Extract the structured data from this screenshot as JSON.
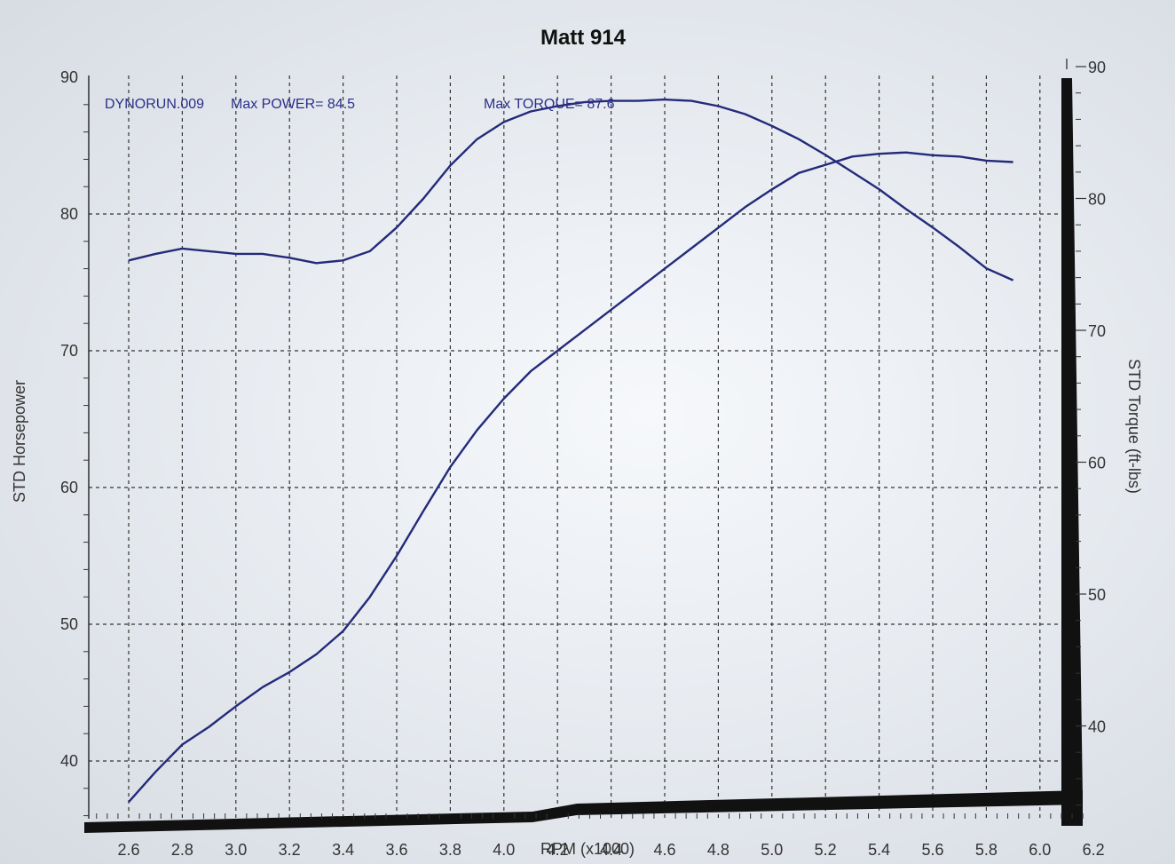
{
  "chart_data": {
    "type": "line",
    "title": "Matt 914",
    "xlabel": "RPM (x1000)",
    "ylabel": "STD Horsepower",
    "y2label": "STD Torque (ft-lbs)",
    "xlim": [
      2.5,
      6.2
    ],
    "ylim": [
      35,
      90
    ],
    "y2lim": [
      32,
      90
    ],
    "x_ticks": [
      "2.6",
      "2.8",
      "3.0",
      "3.2",
      "3.4",
      "3.6",
      "3.8",
      "4.0",
      "4.2",
      "4.4",
      "4.6",
      "4.8",
      "5.0",
      "5.2",
      "5.4",
      "5.6",
      "5.8",
      "6.0",
      "6.2"
    ],
    "y_ticks": [
      "40",
      "50",
      "60",
      "70",
      "80",
      "90"
    ],
    "y2_ticks": [
      "40",
      "50",
      "60",
      "70",
      "80",
      "90"
    ],
    "grid": true,
    "annotations": {
      "run": "DYNORUN.009",
      "max_power": "Max POWER= 84.5",
      "max_torque": "Max TORQUE= 87.6"
    },
    "series": [
      {
        "axis": "left",
        "x": [
          2.6,
          2.7,
          2.8,
          2.9,
          3.0,
          3.1,
          3.2,
          3.3,
          3.4,
          3.5,
          3.6,
          3.7,
          3.8,
          3.9,
          4.0,
          4.1,
          4.2,
          4.3,
          4.4,
          4.5,
          4.6,
          4.7,
          4.8,
          4.9,
          5.0,
          5.1,
          5.2,
          5.3,
          5.4,
          5.5,
          5.6,
          5.7,
          5.8,
          5.9
        ],
        "values": [
          37.0,
          39.2,
          41.2,
          42.5,
          44.0,
          45.4,
          46.5,
          47.8,
          49.5,
          52.0,
          55.0,
          58.3,
          61.5,
          64.2,
          66.5,
          68.5,
          70.0,
          71.5,
          73.0,
          74.5,
          76.0,
          77.5,
          79.0,
          80.5,
          81.8,
          83.0,
          83.6,
          84.2,
          84.4,
          84.5,
          84.3,
          84.2,
          83.9,
          83.8
        ]
      },
      {
        "axis": "right",
        "x": [
          2.6,
          2.7,
          2.8,
          2.9,
          3.0,
          3.1,
          3.2,
          3.3,
          3.4,
          3.5,
          3.6,
          3.7,
          3.8,
          3.9,
          4.0,
          4.1,
          4.2,
          4.3,
          4.4,
          4.5,
          4.6,
          4.7,
          4.8,
          4.9,
          5.0,
          5.1,
          5.2,
          5.3,
          5.4,
          5.5,
          5.6,
          5.7,
          5.8,
          5.9
        ],
        "values": [
          75.3,
          75.8,
          76.2,
          76.0,
          75.8,
          75.8,
          75.5,
          75.1,
          75.3,
          76.0,
          77.8,
          80.0,
          82.5,
          84.5,
          85.8,
          86.6,
          87.0,
          87.3,
          87.4,
          87.4,
          87.5,
          87.4,
          87.0,
          86.4,
          85.5,
          84.5,
          83.3,
          82.0,
          80.7,
          79.2,
          77.8,
          76.3,
          74.7,
          73.8
        ]
      }
    ]
  }
}
